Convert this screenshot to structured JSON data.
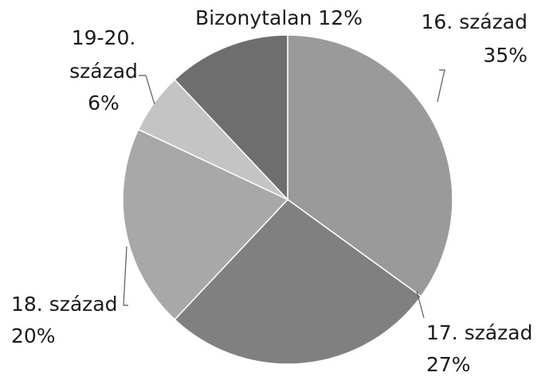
{
  "chart_data": {
    "type": "pie",
    "start_angle_deg": 0,
    "direction": "clockwise",
    "slices": [
      {
        "label": "16. század",
        "percent_label": "35%",
        "value": 35,
        "color": "#9a9a9a"
      },
      {
        "label": "17. század",
        "percent_label": "27%",
        "value": 27,
        "color": "#808080"
      },
      {
        "label": "18. század",
        "percent_label": "20%",
        "value": 20,
        "color": "#a8a8a8"
      },
      {
        "label": "19-20. század",
        "percent_label": "6%",
        "value": 6,
        "color": "#c4c4c4"
      },
      {
        "label": "Bizonytalan",
        "percent_label": "12%",
        "value": 12,
        "color": "#6e6e6e"
      }
    ]
  }
}
